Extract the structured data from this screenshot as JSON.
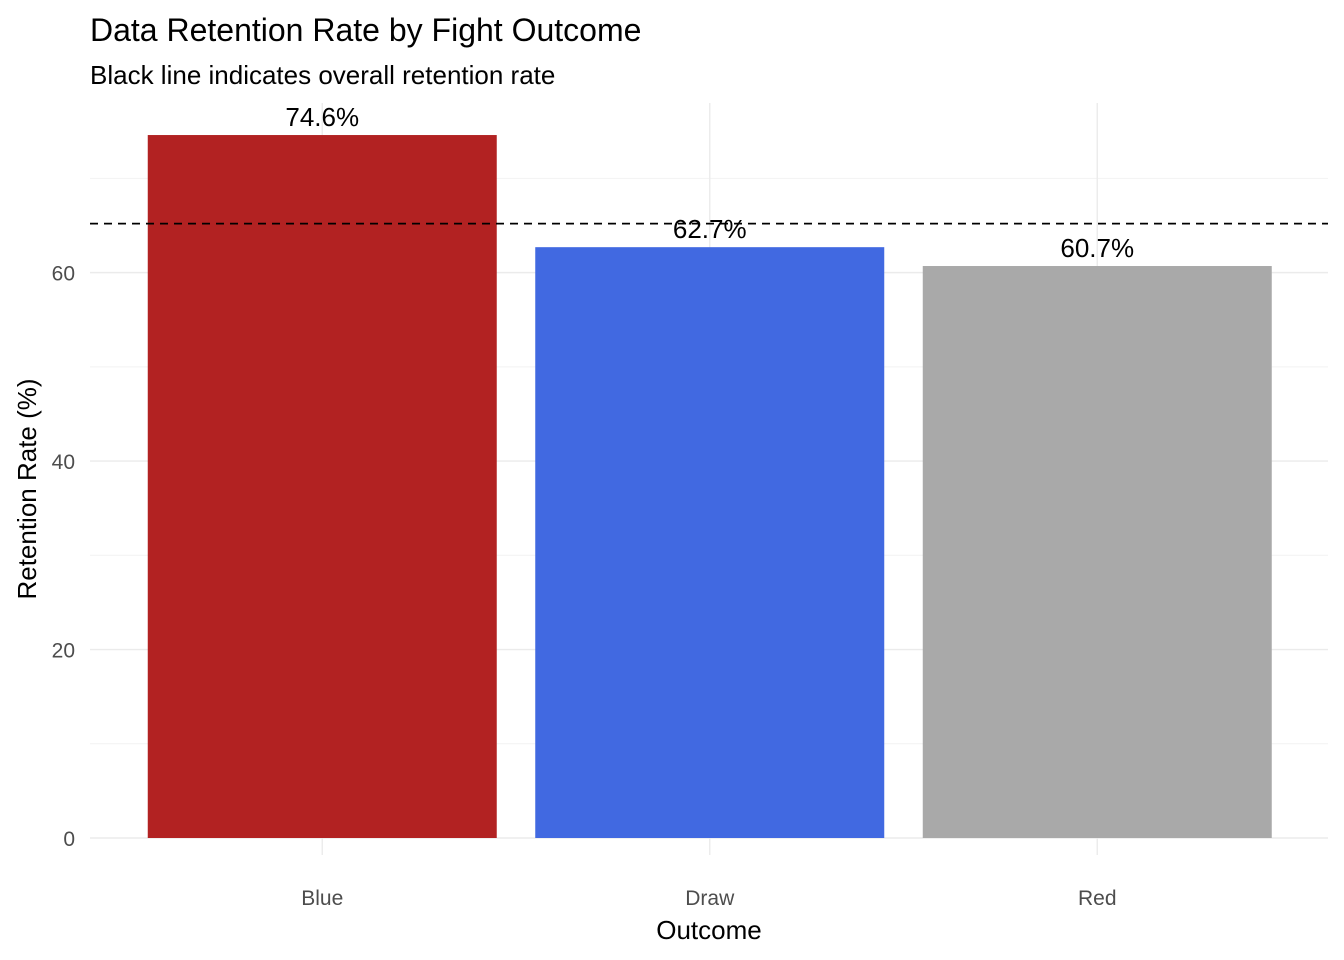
{
  "chart_data": {
    "type": "bar",
    "title": "Data Retention Rate by Fight Outcome",
    "subtitle": "Black line indicates overall retention rate",
    "xlabel": "Outcome",
    "ylabel": "Retention Rate (%)",
    "categories": [
      "Blue",
      "Draw",
      "Red"
    ],
    "values": [
      74.6,
      62.7,
      60.7
    ],
    "data_labels": [
      "74.6%",
      "62.7%",
      "60.7%"
    ],
    "colors": [
      "#B22222",
      "#4169E1",
      "#A9A9A9"
    ],
    "ylim": [
      0,
      78
    ],
    "yticks": [
      0,
      20,
      40,
      60
    ],
    "ytick_labels": [
      "0",
      "20",
      "40",
      "60"
    ],
    "reference_line": {
      "value": 65.2,
      "style": "dashed",
      "color": "#000000"
    },
    "grid": true,
    "legend": "none"
  }
}
